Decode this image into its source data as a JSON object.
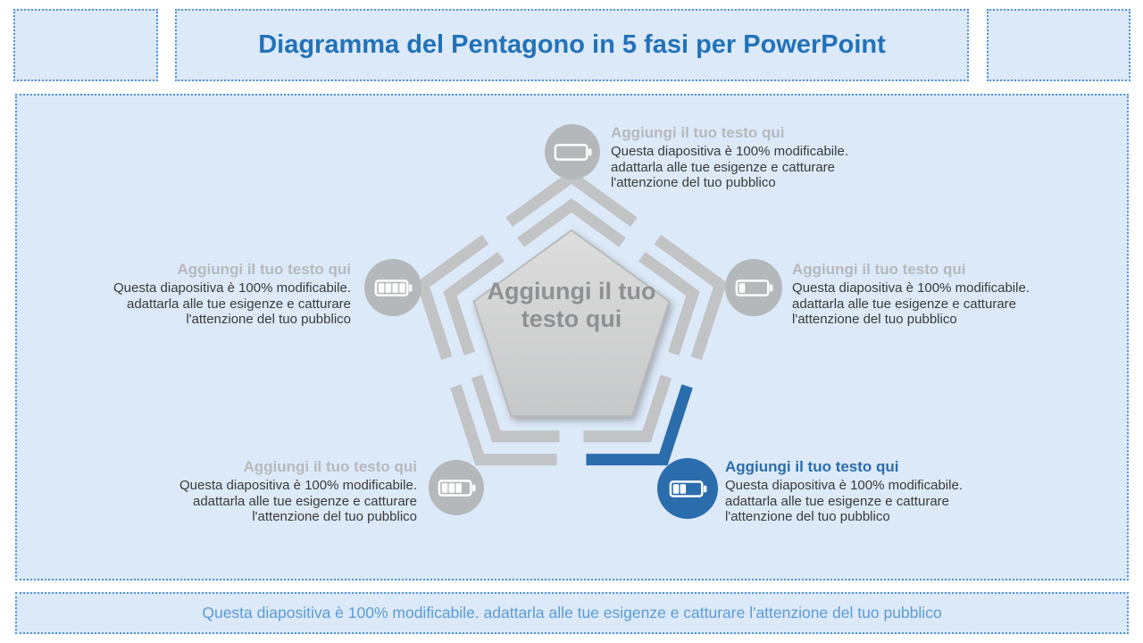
{
  "title": "Diagramma del Pentagono in 5 fasi per PowerPoint",
  "pentagon": {
    "label": "Aggiungi il tuo testo qui"
  },
  "items": [
    {
      "position": "top",
      "heading": "Aggiungi il tuo testo qui",
      "body": "Questa diapositiva è 100% modificabile. adattarla alle tue esigenze e catturare l'attenzione del tuo pubblico",
      "icon": "battery-empty-icon",
      "battery_bars": 0,
      "highlighted": false
    },
    {
      "position": "right",
      "heading": "Aggiungi il tuo testo qui",
      "body": "Questa diapositiva è 100% modificabile. adattarla alle tue esigenze e catturare l'attenzione del tuo pubblico",
      "icon": "battery-1-bar-icon",
      "battery_bars": 1,
      "highlighted": false
    },
    {
      "position": "left",
      "heading": "Aggiungi il tuo testo qui",
      "body": "Questa diapositiva è 100% modificabile. adattarla alle tue esigenze e catturare l'attenzione del tuo pubblico",
      "icon": "battery-full-icon",
      "battery_bars": 4,
      "highlighted": false
    },
    {
      "position": "bottom-left",
      "heading": "Aggiungi il tuo testo qui",
      "body": "Questa diapositiva è 100% modificabile. adattarla alle tue esigenze e catturare l'attenzione del tuo pubblico",
      "icon": "battery-3-bars-icon",
      "battery_bars": 3,
      "highlighted": false
    },
    {
      "position": "bottom-right",
      "heading": "Aggiungi il tuo testo qui",
      "body": "Questa diapositiva è 100% modificabile. adattarla alle tue esigenze e catturare l'attenzione del tuo pubblico",
      "icon": "battery-2-bars-icon",
      "battery_bars": 2,
      "highlighted": true
    }
  ],
  "footer": {
    "text": "Questa diapositiva è 100% modificabile. adattarla alle tue esigenze e catturare l'attenzione del tuo pubblico"
  },
  "colors": {
    "accent": "#2b6cad",
    "title_blue": "#2272b9",
    "footer_blue": "#5b9bd5",
    "panel_fill": "#dce9f8",
    "dashed_border": "#4f93d8",
    "ring_gray": "#c2c3c4",
    "circle_gray": "#b5b8bb",
    "heading_gray": "#b6b9bc",
    "body_text": "#3a3a3a",
    "pentagon_text": "#8f9092"
  }
}
